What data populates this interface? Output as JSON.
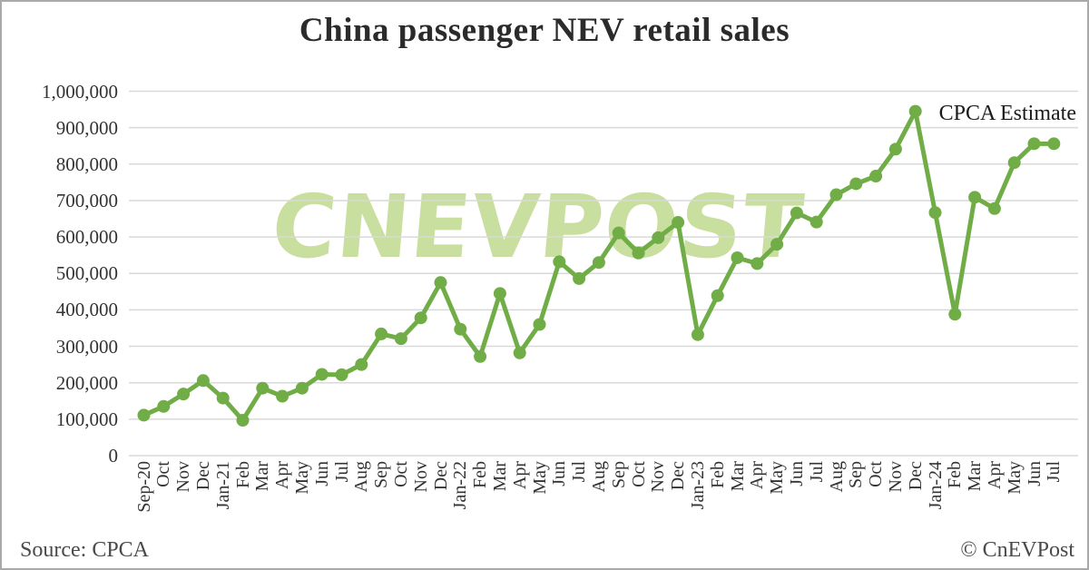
{
  "title": "China passenger NEV retail sales",
  "watermark": "CNEVPOST",
  "annotation": "CPCA Estimate",
  "footer": {
    "source": "Source: CPCA",
    "copyright": "© CnEVPost"
  },
  "colors": {
    "series": "#70ad47",
    "grid": "#d9d9d9",
    "watermark": "#c9df9f",
    "tick_text": "#333333"
  },
  "y_axis": {
    "tick_labels": [
      "1,000,000",
      "900,000",
      "800,000",
      "700,000",
      "600,000",
      "500,000",
      "400,000",
      "300,000",
      "200,000",
      "100,000",
      "0"
    ]
  },
  "chart_data": {
    "type": "line",
    "title": "China passenger NEV retail sales",
    "xlabel": "",
    "ylabel": "",
    "ylim": [
      0,
      1000000
    ],
    "y_tick_step": 100000,
    "grid": true,
    "legend_position": "none",
    "annotation": {
      "text": "CPCA Estimate",
      "applies_to": "Jul-24"
    },
    "categories": [
      "Sep-20",
      "Oct",
      "Nov",
      "Dec",
      "Jan-21",
      "Feb",
      "Mar",
      "Apr",
      "May",
      "Jun",
      "Jul",
      "Aug",
      "Sep",
      "Oct",
      "Nov",
      "Dec",
      "Jan-22",
      "Feb",
      "Mar",
      "Apr",
      "May",
      "Jun",
      "Jul",
      "Aug",
      "Sep",
      "Oct",
      "Nov",
      "Dec",
      "Jan-23",
      "Feb",
      "Mar",
      "Apr",
      "May",
      "Jun",
      "Jul",
      "Aug",
      "Sep",
      "Oct",
      "Nov",
      "Dec",
      "Jan-24",
      "Feb",
      "Mar",
      "Apr",
      "May",
      "Jun",
      "Jul"
    ],
    "series": [
      {
        "name": "China passenger NEV retail sales",
        "color": "#70ad47",
        "values": [
          111000,
          135000,
          169000,
          206000,
          158000,
          97000,
          185000,
          163000,
          185000,
          223000,
          222000,
          250000,
          334000,
          321000,
          378000,
          475000,
          347000,
          272000,
          445000,
          282000,
          360000,
          532000,
          486000,
          530000,
          611000,
          556000,
          598000,
          640000,
          332000,
          439000,
          543000,
          527000,
          580000,
          666000,
          641000,
          716000,
          746000,
          767000,
          841000,
          945000,
          667000,
          388000,
          709000,
          678000,
          804000,
          856000,
          856000
        ]
      }
    ]
  }
}
